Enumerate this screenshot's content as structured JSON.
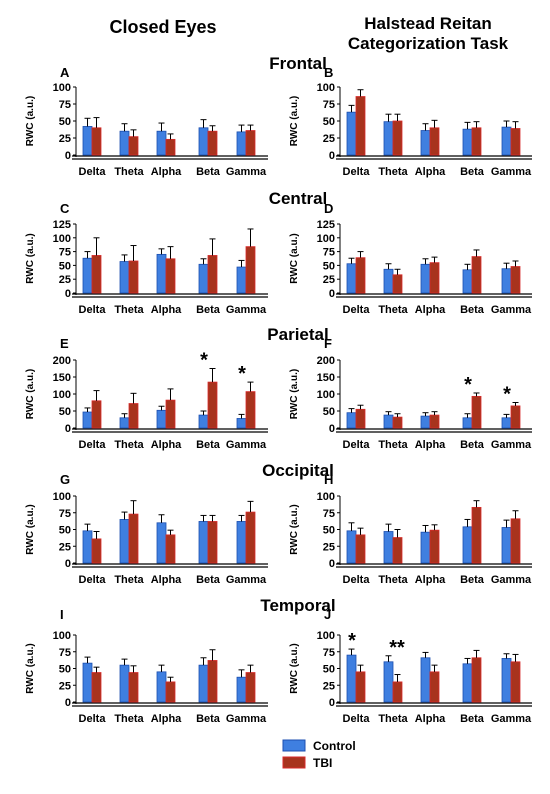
{
  "titles": {
    "left": "Closed Eyes",
    "right_line1": "Halstead Reitan",
    "right_line2": "Categorization Task"
  },
  "legend": {
    "control": "Control",
    "tbi": "TBI"
  },
  "colors": {
    "control": "#3f7fe0",
    "tbi": "#a8331d",
    "control_edge": "#1c4fb0",
    "tbi_edge": "#d82a2a",
    "error": "#000000"
  },
  "chart_data": {
    "type": "bar",
    "categories": [
      "Delta",
      "Theta",
      "Alpha",
      "Beta",
      "Gamma"
    ],
    "ylabel": "RWC (a.u.)",
    "series_names": [
      "Control",
      "TBI"
    ],
    "regions": [
      {
        "name": "Frontal",
        "panels": [
          {
            "label": "A",
            "condition": "Closed Eyes",
            "ylim": [
              0,
              100
            ],
            "yticks": [
              0,
              25,
              50,
              75,
              100
            ],
            "control": [
              42,
              35,
              35,
              40,
              34
            ],
            "tbi": [
              40,
              27,
              23,
              35,
              36
            ],
            "control_err": [
              12,
              11,
              12,
              12,
              10
            ],
            "tbi_err": [
              15,
              10,
              8,
              8,
              8
            ],
            "stars": [
              "",
              "",
              "",
              "",
              ""
            ]
          },
          {
            "label": "B",
            "condition": "Halstead Reitan Categorization Task",
            "ylim": [
              0,
              100
            ],
            "yticks": [
              0,
              25,
              50,
              75,
              100
            ],
            "control": [
              63,
              49,
              36,
              38,
              41
            ],
            "tbi": [
              86,
              50,
              40,
              40,
              39
            ],
            "control_err": [
              10,
              11,
              10,
              10,
              9
            ],
            "tbi_err": [
              10,
              10,
              11,
              9,
              10
            ],
            "stars": [
              "",
              "",
              "",
              "",
              ""
            ]
          }
        ]
      },
      {
        "name": "Central",
        "panels": [
          {
            "label": "C",
            "condition": "Closed Eyes",
            "ylim": [
              0,
              125
            ],
            "yticks": [
              0,
              25,
              50,
              75,
              100,
              125
            ],
            "control": [
              63,
              57,
              70,
              52,
              47
            ],
            "tbi": [
              68,
              58,
              62,
              68,
              84
            ],
            "control_err": [
              12,
              12,
              10,
              10,
              12
            ],
            "tbi_err": [
              32,
              28,
              22,
              30,
              32
            ],
            "stars": [
              "",
              "",
              "",
              "",
              ""
            ]
          },
          {
            "label": "D",
            "condition": "Halstead Reitan Categorization Task",
            "ylim": [
              0,
              125
            ],
            "yticks": [
              0,
              25,
              50,
              75,
              100,
              125
            ],
            "control": [
              53,
              43,
              52,
              42,
              44
            ],
            "tbi": [
              64,
              33,
              55,
              66,
              48
            ],
            "control_err": [
              10,
              10,
              10,
              10,
              10
            ],
            "tbi_err": [
              11,
              10,
              10,
              12,
              10
            ],
            "stars": [
              "",
              "",
              "",
              "",
              ""
            ]
          }
        ]
      },
      {
        "name": "Parietal",
        "panels": [
          {
            "label": "E",
            "condition": "Closed Eyes",
            "ylim": [
              0,
              200
            ],
            "yticks": [
              0,
              50,
              100,
              150,
              200
            ],
            "control": [
              47,
              30,
              52,
              38,
              28
            ],
            "tbi": [
              80,
              72,
              82,
              135,
              107
            ],
            "control_err": [
              12,
              12,
              12,
              12,
              12
            ],
            "tbi_err": [
              30,
              30,
              33,
              40,
              28
            ],
            "stars": [
              "",
              "",
              "",
              "*",
              "*"
            ]
          },
          {
            "label": "F",
            "condition": "Halstead Reitan Categorization Task",
            "ylim": [
              0,
              200
            ],
            "yticks": [
              0,
              50,
              100,
              150,
              200
            ],
            "control": [
              45,
              38,
              35,
              30,
              30
            ],
            "tbi": [
              55,
              32,
              38,
              93,
              65
            ],
            "control_err": [
              12,
              10,
              10,
              12,
              10
            ],
            "tbi_err": [
              12,
              10,
              10,
              10,
              10
            ],
            "stars": [
              "",
              "",
              "",
              "*",
              "*"
            ]
          }
        ]
      },
      {
        "name": "Occipital",
        "panels": [
          {
            "label": "G",
            "condition": "Closed Eyes",
            "ylim": [
              0,
              100
            ],
            "yticks": [
              0,
              25,
              50,
              75,
              100
            ],
            "control": [
              48,
              65,
              60,
              62,
              62
            ],
            "tbi": [
              36,
              73,
              42,
              62,
              76
            ],
            "control_err": [
              10,
              11,
              12,
              9,
              9
            ],
            "tbi_err": [
              11,
              20,
              7,
              9,
              16
            ],
            "stars": [
              "",
              "",
              "",
              "",
              ""
            ]
          },
          {
            "label": "H",
            "condition": "Halstead Reitan Categorization Task",
            "ylim": [
              0,
              100
            ],
            "yticks": [
              0,
              25,
              50,
              75,
              100
            ],
            "control": [
              48,
              47,
              46,
              54,
              53
            ],
            "tbi": [
              42,
              38,
              49,
              83,
              66
            ],
            "control_err": [
              12,
              11,
              10,
              11,
              11
            ],
            "tbi_err": [
              10,
              12,
              8,
              10,
              12
            ],
            "stars": [
              "",
              "",
              "",
              "",
              ""
            ]
          }
        ]
      },
      {
        "name": "Temporal",
        "panels": [
          {
            "label": "I",
            "condition": "Closed Eyes",
            "ylim": [
              0,
              100
            ],
            "yticks": [
              0,
              25,
              50,
              75,
              100
            ],
            "control": [
              58,
              55,
              45,
              55,
              37
            ],
            "tbi": [
              44,
              44,
              30,
              62,
              44
            ],
            "control_err": [
              9,
              9,
              10,
              11,
              11
            ],
            "tbi_err": [
              8,
              10,
              7,
              16,
              11
            ],
            "stars": [
              "",
              "",
              "",
              "",
              ""
            ]
          },
          {
            "label": "J",
            "condition": "Halstead Reitan Categorization Task",
            "ylim": [
              0,
              100
            ],
            "yticks": [
              0,
              25,
              50,
              75,
              100
            ],
            "control": [
              70,
              60,
              66,
              57,
              65
            ],
            "tbi": [
              45,
              30,
              45,
              66,
              60
            ],
            "control_err": [
              9,
              9,
              8,
              8,
              7
            ],
            "tbi_err": [
              10,
              11,
              10,
              11,
              11
            ],
            "stars": [
              "*",
              "**",
              "",
              "",
              ""
            ]
          }
        ]
      }
    ]
  }
}
